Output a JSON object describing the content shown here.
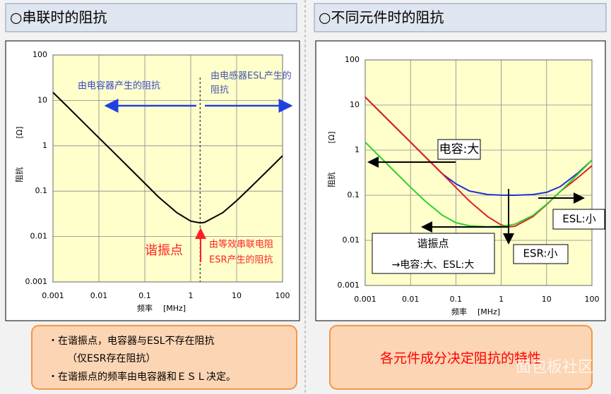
{
  "chart_data": [
    {
      "type": "line",
      "title": "○串联时的阻抗",
      "xlabel": "频率",
      "xunit": "[MHz]",
      "ylabel": "阻抗",
      "yunit": "[Ω]",
      "x": [
        0.001,
        0.002,
        0.005,
        0.01,
        0.02,
        0.05,
        0.1,
        0.2,
        0.5,
        1,
        1.6,
        2,
        5,
        10,
        20,
        50,
        100
      ],
      "series": [
        {
          "color": "#000000",
          "values": [
            15,
            7.5,
            3,
            1.5,
            0.75,
            0.3,
            0.149,
            0.074,
            0.0336,
            0.0219,
            0.02,
            0.0205,
            0.0336,
            0.0618,
            0.121,
            0.3,
            0.6
          ]
        }
      ],
      "xlim": [
        0.001,
        100
      ],
      "ylim": [
        0.001,
        100
      ],
      "xscale": "log",
      "yscale": "log",
      "xticks": [
        0.001,
        0.01,
        0.1,
        1,
        10,
        100
      ],
      "yticks": [
        0.001,
        0.01,
        0.1,
        1,
        10,
        100
      ],
      "grid": true,
      "annotations": [
        "由电容器产生的阻抗",
        "由电感器ESL产生的",
        "阻抗",
        "谐振点",
        "由等效串联电阻",
        "ESR产生的阻抗"
      ]
    },
    {
      "type": "line",
      "title": "○不同元件时的阻抗",
      "xlabel": "频率",
      "xunit": "[MHz]",
      "ylabel": "阻抗",
      "yunit": "[Ω]",
      "x": [
        0.001,
        0.002,
        0.005,
        0.01,
        0.02,
        0.05,
        0.1,
        0.2,
        0.5,
        1,
        1.6,
        2,
        5,
        10,
        20,
        50,
        100
      ],
      "series": [
        {
          "color": "#2030d0",
          "values": [
            15,
            7.5,
            3,
            1.5,
            0.75,
            0.3,
            0.179,
            0.124,
            0.1036,
            0.1004,
            0.1,
            0.1,
            0.1036,
            0.116,
            0.155,
            0.316,
            0.6
          ]
        },
        {
          "color": "#e02020",
          "values": [
            15,
            7.5,
            3,
            1.5,
            0.75,
            0.3,
            0.149,
            0.074,
            0.0336,
            0.0219,
            0.02,
            0.0205,
            0.0336,
            0.0618,
            0.121,
            0.25,
            0.45
          ]
        },
        {
          "color": "#30d030",
          "values": [
            1.5,
            0.75,
            0.3,
            0.15,
            0.0776,
            0.0361,
            0.0246,
            0.021,
            0.02,
            0.0205,
            0.0218,
            0.0228,
            0.0358,
            0.063,
            0.12,
            0.3,
            0.6
          ]
        }
      ],
      "xlim": [
        0.001,
        100
      ],
      "ylim": [
        0.001,
        100
      ],
      "xscale": "log",
      "yscale": "log",
      "xticks": [
        0.001,
        0.01,
        0.1,
        1,
        10,
        100
      ],
      "yticks": [
        0.001,
        0.01,
        0.1,
        1,
        10,
        100
      ],
      "grid": true,
      "annotations": [
        "电容:大",
        "ESL:小",
        "ESR:小",
        "谐振点",
        "→电容:大、ESL:大"
      ]
    }
  ],
  "notes_left": [
    "・在谐振点，电容器与ESL不存在阻抗",
    "（仅ESR存在阻抗）",
    "・在谐振点的频率由电容器和ＥＳＬ决定。"
  ],
  "note_right": "各元件成分决定阻抗的特性",
  "watermark": "面包板社区"
}
